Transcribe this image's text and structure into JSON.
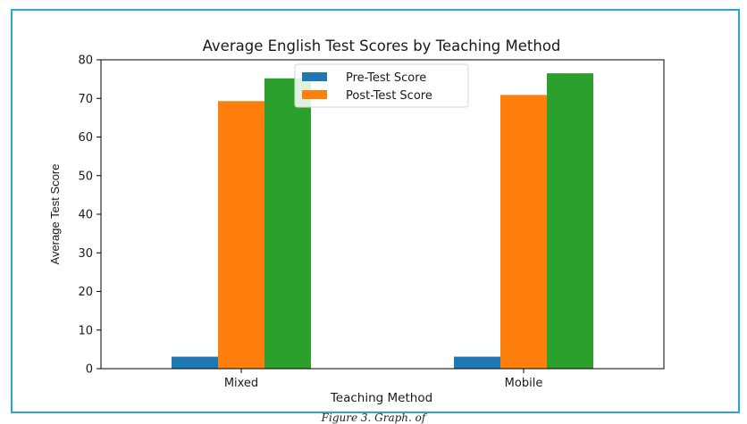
{
  "chart_data": {
    "type": "bar",
    "title": "Average English Test Scores by Teaching Method",
    "xlabel": "Teaching Method",
    "ylabel": "Average Test Score",
    "categories": [
      "Mixed",
      "Mobile"
    ],
    "ylim": [
      0,
      80
    ],
    "yticks": [
      0,
      10,
      20,
      30,
      40,
      50,
      60,
      70,
      80
    ],
    "grid": false,
    "legend_position": "top-center",
    "series": [
      {
        "name": "Pre-Test Score",
        "values": [
          3.1,
          3.1
        ],
        "color": "#1f77b4"
      },
      {
        "name": "Post-Test Score",
        "values": [
          69.3,
          70.9
        ],
        "color": "#ff7f0e"
      },
      {
        "values": [
          75.2,
          76.5
        ],
        "color": "#2ca02c"
      }
    ]
  },
  "caption": "Figure 3. Graph. of"
}
